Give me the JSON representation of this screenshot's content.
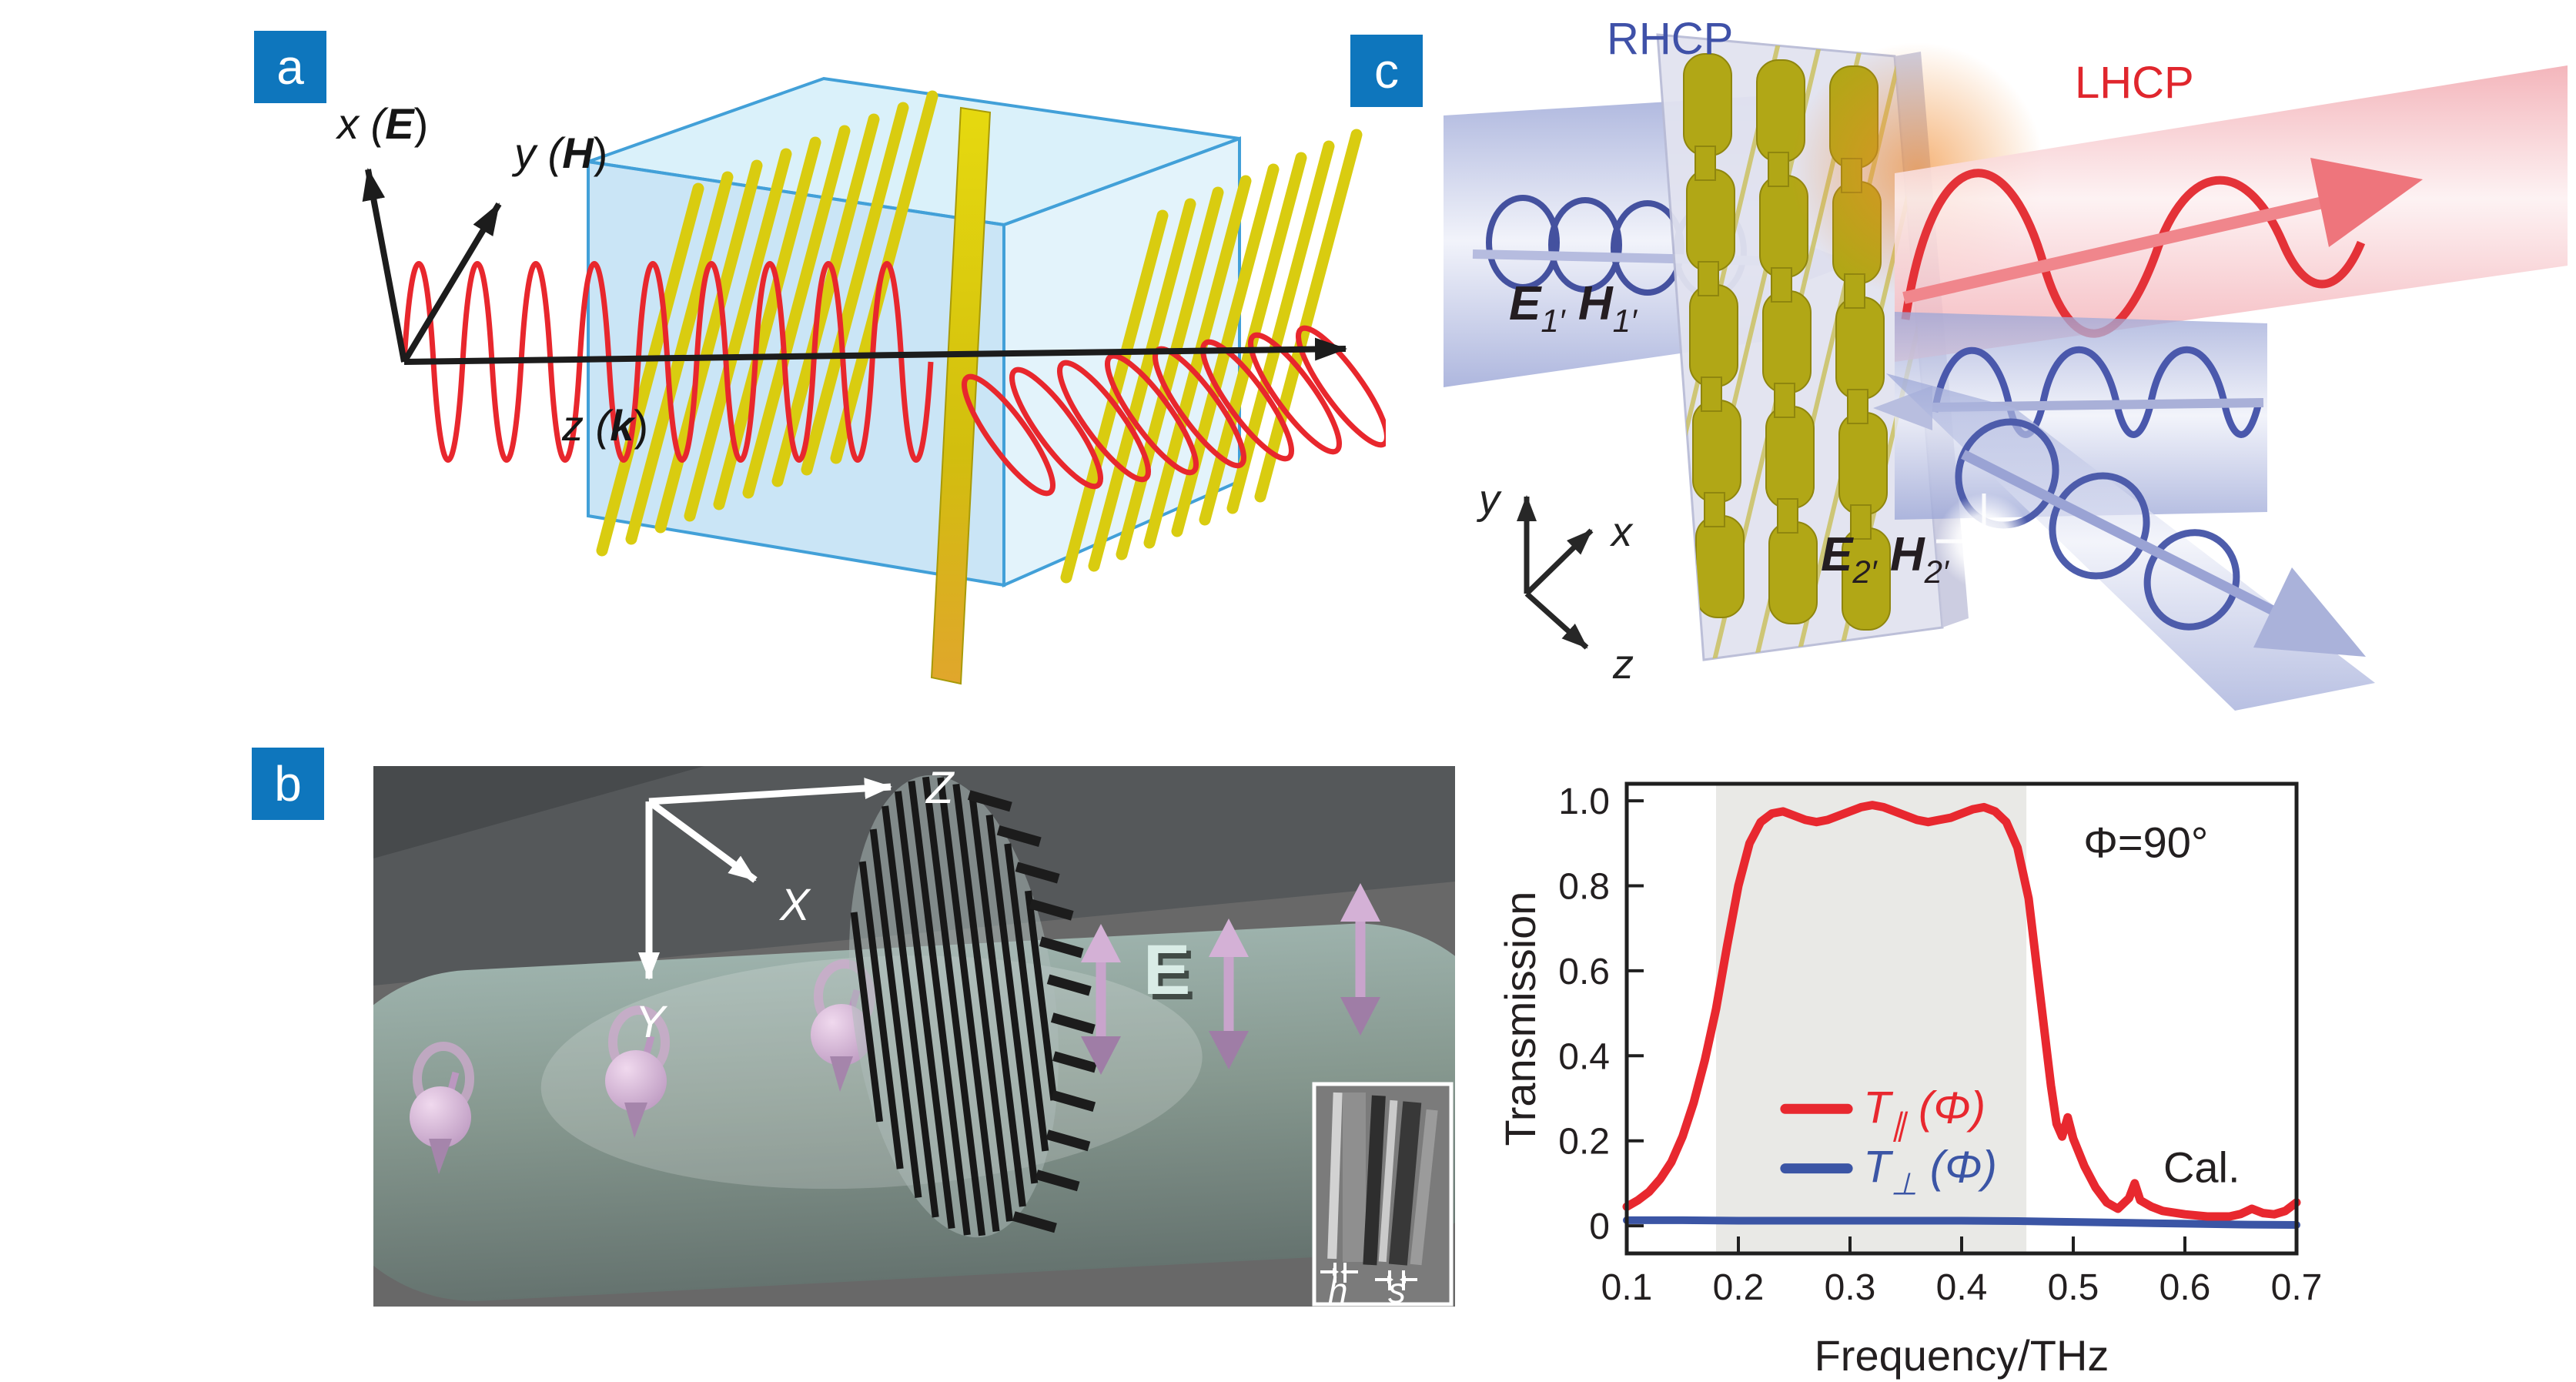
{
  "figure": {
    "type": "three-panel scientific figure with transmission spectrum",
    "colors": {
      "panel_label_bg": "#0e76bd",
      "red_accent": "#e8282f",
      "blue_accent": "#3b55a5",
      "rhcp_blue": "#3f51a8",
      "lhcp_red": "#e0262d",
      "band_gray": "#e9e9e6",
      "box_blue": "#42a0d8",
      "grating_yellow": "#d9cc10"
    }
  },
  "panel_a": {
    "label": "a",
    "axis_x_pre": "x (",
    "axis_x_em": "E",
    "axis_x_post": ")",
    "axis_y_pre": "y (",
    "axis_y_em": "H",
    "axis_y_post": ")",
    "axis_z_pre": "z (",
    "axis_z_em": "k",
    "axis_z_post": ")"
  },
  "panel_b": {
    "label": "b",
    "axis_z": "Z",
    "axis_x": "X",
    "axis_y": "Y",
    "e_field": "E",
    "dim_h": "h",
    "dim_s": "s"
  },
  "panel_c": {
    "label": "c",
    "rhcp": "RHCP",
    "lhcp": "LHCP",
    "e_in_main": "E",
    "e_in_sub": "1′",
    "h_in_main": "H",
    "h_in_sub": "1′",
    "e_out_main": "E",
    "e_out_sub": "2′",
    "h_out_main": "H",
    "h_out_sub": "2′",
    "axis_x": "x",
    "axis_y": "y",
    "axis_z": "z"
  },
  "chart_data": {
    "type": "line",
    "title": "",
    "xlabel": "Frequency/THz",
    "ylabel": "Transmission",
    "xlim": [
      0.1,
      0.7
    ],
    "ylim": [
      -0.065,
      1.04
    ],
    "grid": false,
    "xticks": {
      "major": [
        0.1,
        0.2,
        0.3,
        0.4,
        0.5,
        0.6,
        0.7
      ],
      "labels": [
        "0.1",
        "0.2",
        "0.3",
        "0.4",
        "0.5",
        "0.6",
        "0.7"
      ]
    },
    "yticks": {
      "major": [
        0,
        0.2,
        0.4,
        0.6,
        0.8,
        1.0
      ],
      "labels": [
        "0",
        "0.2",
        "0.4",
        "0.6",
        "0.8",
        "1.0"
      ]
    },
    "band": {
      "x0": 0.18,
      "x1": 0.458,
      "color": "#e9e9e6"
    },
    "legend": {
      "position": "inside-center-left",
      "entries": [
        {
          "main": "T",
          "sub": "∥",
          "arg": " (Φ)",
          "color": "#e8282f"
        },
        {
          "main": "T",
          "sub": "⊥",
          "arg": " (Φ)",
          "color": "#3b55a5"
        }
      ]
    },
    "annotations": [
      {
        "text": "Φ=90°",
        "x": 0.565,
        "y": 0.9,
        "color": "#231f20"
      },
      {
        "text": "Cal.",
        "x": 0.615,
        "y": 0.135,
        "color": "#231f20"
      }
    ],
    "series": [
      {
        "name": "T∥(Φ)",
        "color": "#e8282f",
        "width": 11,
        "x": [
          0.1,
          0.11,
          0.12,
          0.13,
          0.14,
          0.15,
          0.16,
          0.17,
          0.18,
          0.19,
          0.2,
          0.21,
          0.22,
          0.23,
          0.24,
          0.25,
          0.26,
          0.27,
          0.28,
          0.29,
          0.3,
          0.31,
          0.32,
          0.33,
          0.34,
          0.35,
          0.36,
          0.37,
          0.38,
          0.39,
          0.4,
          0.41,
          0.42,
          0.43,
          0.44,
          0.45,
          0.46,
          0.47,
          0.48,
          0.485,
          0.49,
          0.495,
          0.5,
          0.51,
          0.52,
          0.53,
          0.54,
          0.55,
          0.555,
          0.56,
          0.57,
          0.58,
          0.6,
          0.62,
          0.64,
          0.65,
          0.66,
          0.67,
          0.68,
          0.69,
          0.7
        ],
        "y": [
          0.045,
          0.06,
          0.08,
          0.11,
          0.15,
          0.21,
          0.29,
          0.39,
          0.51,
          0.66,
          0.8,
          0.9,
          0.95,
          0.97,
          0.975,
          0.965,
          0.955,
          0.95,
          0.955,
          0.965,
          0.975,
          0.985,
          0.99,
          0.985,
          0.975,
          0.965,
          0.955,
          0.95,
          0.955,
          0.96,
          0.97,
          0.98,
          0.985,
          0.975,
          0.95,
          0.89,
          0.77,
          0.55,
          0.33,
          0.24,
          0.21,
          0.255,
          0.205,
          0.14,
          0.09,
          0.055,
          0.04,
          0.065,
          0.1,
          0.06,
          0.045,
          0.035,
          0.027,
          0.022,
          0.022,
          0.028,
          0.04,
          0.03,
          0.027,
          0.035,
          0.055
        ]
      },
      {
        "name": "T⊥(Φ)",
        "color": "#3b55a5",
        "width": 10,
        "x": [
          0.1,
          0.15,
          0.2,
          0.25,
          0.3,
          0.35,
          0.4,
          0.45,
          0.5,
          0.55,
          0.6,
          0.65,
          0.7
        ],
        "y": [
          0.013,
          0.013,
          0.012,
          0.012,
          0.012,
          0.012,
          0.012,
          0.011,
          0.009,
          0.007,
          0.005,
          0.003,
          0.002
        ]
      }
    ]
  }
}
